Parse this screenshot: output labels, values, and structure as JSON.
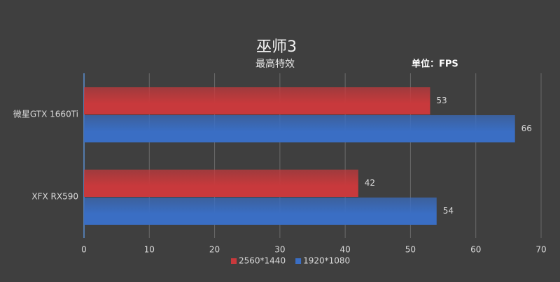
{
  "chart_data": {
    "type": "bar",
    "orientation": "horizontal",
    "title": "巫师3",
    "subtitle": "最高特效",
    "annotation": "单位：FPS",
    "categories": [
      "微星GTX 1660Ti",
      "XFX RX590"
    ],
    "series": [
      {
        "name": "2560*1440",
        "color": "#c8393c",
        "values": [
          53,
          42
        ]
      },
      {
        "name": "1920*1080",
        "color": "#3a6ec4",
        "values": [
          66,
          54
        ]
      }
    ],
    "xlim": [
      0,
      70
    ],
    "xticks": [
      0,
      10,
      20,
      30,
      40,
      50,
      60,
      70
    ],
    "grid": true,
    "legend": "bottom"
  }
}
